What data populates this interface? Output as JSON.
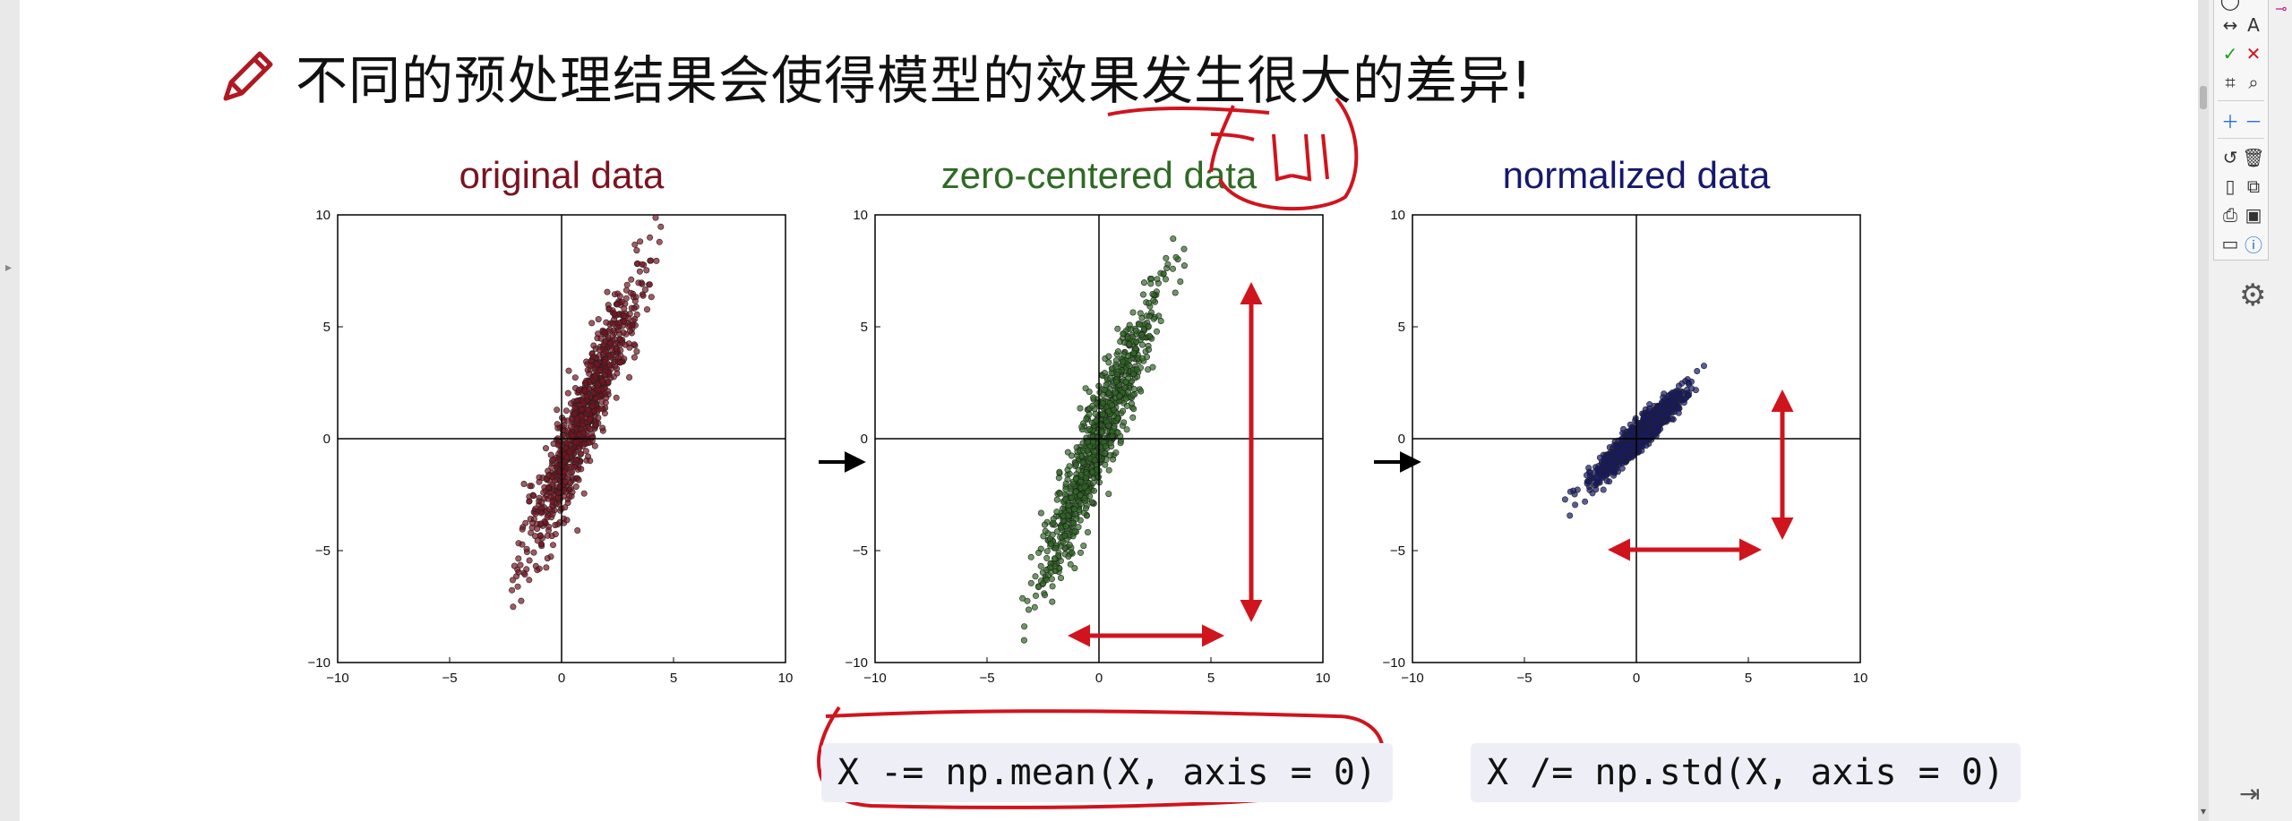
{
  "slide": {
    "heading": "不同的预处理结果会使得模型的效果发生很大的差异!",
    "code_mean": "X -= np.mean(X, axis = 0)",
    "code_std": "X /= np.std(X, axis = 0)",
    "trailing_dot": ".",
    "annotation_note": "red hand-drawn annotations"
  },
  "colors": {
    "original": "#7a1320",
    "zero_centered": "#2f6a24",
    "normalized": "#16186e",
    "annotation": "#d0141e"
  },
  "toolbar": {
    "icons": [
      "circle-icon",
      "arrows-horizontal-icon",
      "text-icon",
      "check-icon",
      "cross-icon",
      "crop-icon",
      "zoom-icon",
      "plus-icon",
      "minus-icon",
      "undo-icon",
      "trash-icon",
      "page-icon",
      "copy-icon",
      "print-icon",
      "save-icon",
      "image-icon",
      "info-icon"
    ],
    "text_tool_label": "A"
  },
  "side": {
    "tool_icon": "wrench-settings-icon",
    "collapse_icon": "collapse-right-icon"
  },
  "chart_data": [
    {
      "type": "scatter",
      "title": "original data",
      "xlim": [
        -10,
        10
      ],
      "ylim": [
        -10,
        10
      ],
      "xticks": [
        "−10",
        "−5",
        "0",
        "5",
        "10"
      ],
      "yticks": [
        "10",
        "5",
        "0",
        "−5",
        "−10"
      ],
      "mean": [
        1,
        1
      ],
      "std": [
        1.3,
        3.2
      ],
      "correlation": 0.94,
      "points": 900,
      "color": "#7a1320"
    },
    {
      "type": "scatter",
      "title": "zero-centered data",
      "xlim": [
        -10,
        10
      ],
      "ylim": [
        -10,
        10
      ],
      "xticks": [
        "−10",
        "−5",
        "0",
        "5",
        "10"
      ],
      "yticks": [
        "10",
        "5",
        "0",
        "−5",
        "−10"
      ],
      "mean": [
        0,
        0
      ],
      "std": [
        1.3,
        3.2
      ],
      "correlation": 0.94,
      "points": 900,
      "color": "#2f6a24"
    },
    {
      "type": "scatter",
      "title": "normalized data",
      "xlim": [
        -10,
        10
      ],
      "ylim": [
        -10,
        10
      ],
      "xticks": [
        "−10",
        "−5",
        "0",
        "5",
        "10"
      ],
      "yticks": [
        "10",
        "5",
        "0",
        "−5",
        "−10"
      ],
      "mean": [
        0,
        0
      ],
      "std": [
        1,
        1
      ],
      "correlation": 0.94,
      "points": 900,
      "color": "#16186e"
    }
  ]
}
